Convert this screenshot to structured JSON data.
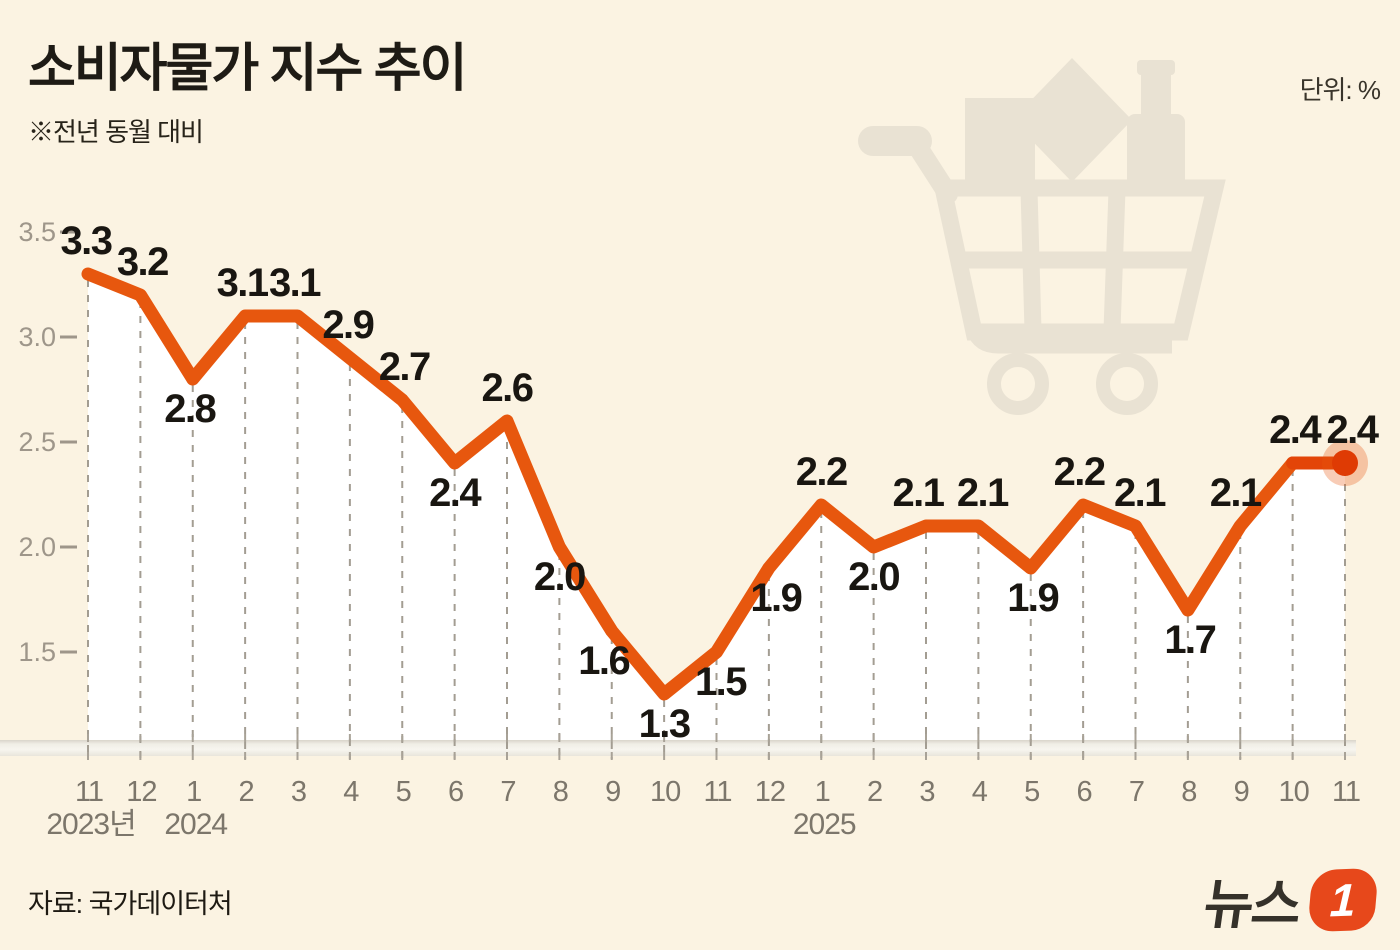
{
  "header": {
    "title": "소비자물가 지수 추이",
    "subtitle": "※전년 동월 대비",
    "unit_label": "단위:  %"
  },
  "watermark": {
    "icon": "shopping-cart-icon"
  },
  "chart_data": {
    "type": "line",
    "title": "소비자물가 지수 추이",
    "unit": "%",
    "x_labels": [
      "11",
      "12",
      "1",
      "2",
      "3",
      "4",
      "5",
      "6",
      "7",
      "8",
      "9",
      "10",
      "11",
      "12",
      "1",
      "2",
      "3",
      "4",
      "5",
      "6",
      "7",
      "8",
      "9",
      "10",
      "11"
    ],
    "years": [
      {
        "label": "2023년",
        "index": 0
      },
      {
        "label": "2024",
        "index": 2
      },
      {
        "label": "2025",
        "index": 14
      }
    ],
    "values": [
      3.3,
      3.2,
      2.8,
      3.1,
      3.1,
      2.9,
      2.7,
      2.4,
      2.6,
      2.0,
      1.6,
      1.3,
      1.5,
      1.9,
      2.2,
      2.0,
      2.1,
      2.1,
      1.9,
      2.2,
      2.1,
      1.7,
      2.1,
      2.4,
      2.4
    ],
    "labels": [
      {
        "text": "3.3",
        "pos": "above",
        "dx": -2
      },
      {
        "text": "3.2",
        "pos": "above",
        "dx": 2
      },
      {
        "text": "2.8",
        "pos": "below",
        "dx": -3
      },
      {
        "text": "3.1",
        "pos": "above",
        "dx": -3
      },
      {
        "text": "3.1",
        "pos": "above",
        "dx": -3
      },
      {
        "text": "2.9",
        "pos": "above",
        "dx": -2
      },
      {
        "text": "2.7",
        "pos": "above",
        "dx": 2
      },
      {
        "text": "2.4",
        "pos": "below",
        "dx": 0
      },
      {
        "text": "2.6",
        "pos": "above",
        "dx": 0
      },
      {
        "text": "2.0",
        "pos": "below",
        "dx": 0
      },
      {
        "text": "1.6",
        "pos": "below",
        "dx": -8
      },
      {
        "text": "1.3",
        "pos": "below",
        "dx": 0
      },
      {
        "text": "1.5",
        "pos": "below",
        "dx": 4
      },
      {
        "text": "1.9",
        "pos": "below",
        "dx": 7
      },
      {
        "text": "2.2",
        "pos": "above",
        "dx": 0
      },
      {
        "text": "2.0",
        "pos": "below",
        "dx": 0
      },
      {
        "text": "2.1",
        "pos": "above",
        "dx": -8
      },
      {
        "text": "2.1",
        "pos": "above",
        "dx": 4
      },
      {
        "text": "1.9",
        "pos": "below",
        "dx": 2
      },
      {
        "text": "2.2",
        "pos": "above",
        "dx": -4
      },
      {
        "text": "2.1",
        "pos": "above",
        "dx": 4
      },
      {
        "text": "1.7",
        "pos": "below",
        "dx": 2
      },
      {
        "text": "2.1",
        "pos": "above",
        "dx": -5
      },
      {
        "text": "2.4",
        "pos": "above",
        "dx": 2
      },
      {
        "text": "2.4",
        "pos": "above",
        "dx": 7
      }
    ],
    "yticks": [
      "3.5",
      "3.0",
      "2.5",
      "2.0",
      "1.5"
    ],
    "ylim": [
      1.5,
      3.5
    ],
    "grid": "dashed-vertical-per-point",
    "legend": "none",
    "highlight_last_point": true
  },
  "footer": {
    "source": "자료: 국가데이터처",
    "logo": {
      "text": "뉴스",
      "badge": "1"
    }
  },
  "colors": {
    "background": "#FBF3E2",
    "area_fill": "#FFFFFF",
    "line": "#E7570E",
    "line_end": "#E34508",
    "end_dot": "#DF3B04",
    "end_halo": "#E7570E",
    "dash": "#A39D92",
    "tick": "#A8A297",
    "band_stops": [
      "#D9D5CB",
      "#F0EEE6",
      "#F7F5EF",
      "#E8E5DB"
    ],
    "ytick_text": "#9E968A",
    "month_text": "#7C766B",
    "label_text": "#191611",
    "watermark": "#E9E2D3",
    "logo_badge": "#E7481B"
  }
}
